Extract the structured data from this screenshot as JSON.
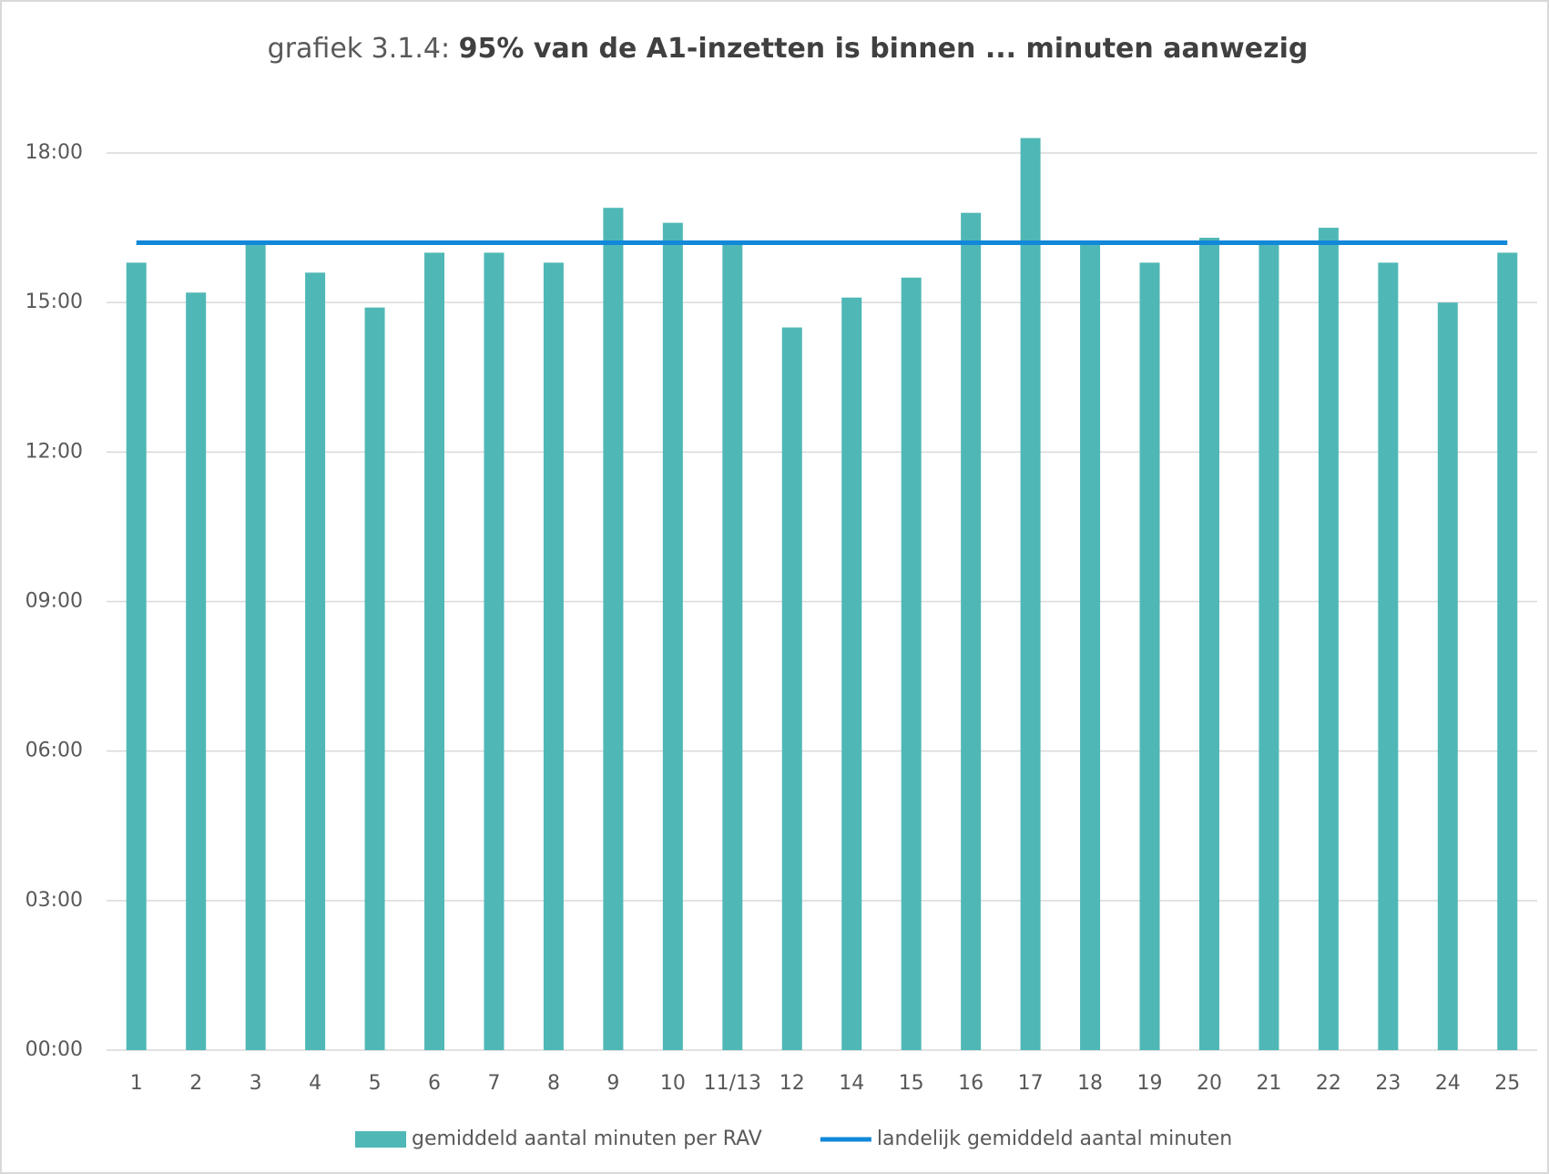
{
  "chart_data": {
    "type": "bar",
    "title": [
      "grafiek 3.1.4:",
      "95% van de A1-inzetten is binnen ... minuten aanwezig"
    ],
    "categories": [
      "1",
      "2",
      "3",
      "4",
      "5",
      "6",
      "7",
      "8",
      "9",
      "10",
      "11/13",
      "12",
      "14",
      "15",
      "16",
      "17",
      "18",
      "19",
      "20",
      "21",
      "22",
      "23",
      "24",
      "25"
    ],
    "series": [
      {
        "name": "gemiddeld aantal minuten per RAV",
        "color": "#4fb8b6",
        "type": "bar",
        "values": [
          15.8,
          15.2,
          16.2,
          15.6,
          14.9,
          16.0,
          16.0,
          15.8,
          16.9,
          16.6,
          16.2,
          14.5,
          15.1,
          15.5,
          16.8,
          18.3,
          16.2,
          15.8,
          16.3,
          16.2,
          16.5,
          15.8,
          15.0,
          16.0
        ]
      },
      {
        "name": "landelijk gemiddeld aantal minuten",
        "color": "#1188d8",
        "type": "line",
        "values": [
          16.2,
          16.2,
          16.2,
          16.2,
          16.2,
          16.2,
          16.2,
          16.2,
          16.2,
          16.2,
          16.2,
          16.2,
          16.2,
          16.2,
          16.2,
          16.2,
          16.2,
          16.2,
          16.2,
          16.2,
          16.2,
          16.2,
          16.2,
          16.2
        ]
      }
    ],
    "ylim": [
      0,
      18
    ],
    "yticks": [
      {
        "value": 0,
        "label": "00:00"
      },
      {
        "value": 3,
        "label": "03:00"
      },
      {
        "value": 6,
        "label": "06:00"
      },
      {
        "value": 9,
        "label": "09:00"
      },
      {
        "value": 12,
        "label": "12:00"
      },
      {
        "value": 15,
        "label": "15:00"
      },
      {
        "value": 18,
        "label": "18:00"
      }
    ],
    "grid": true,
    "legend": "bottom"
  }
}
